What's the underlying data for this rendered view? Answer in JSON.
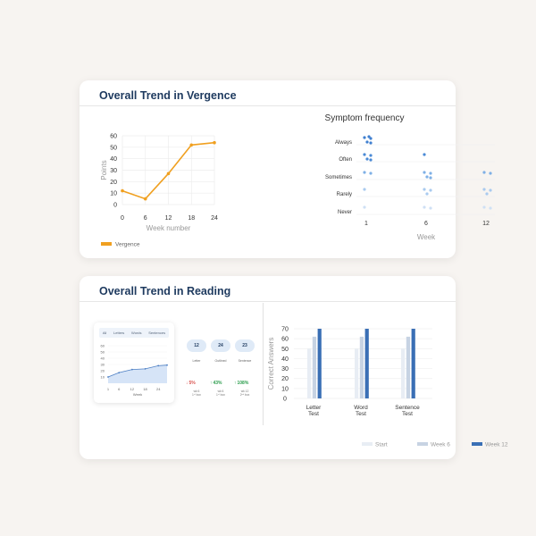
{
  "vergence_card": {
    "title": "Overall Trend in Vergence",
    "line_chart": {
      "ylabel": "Points",
      "xlabel": "Week number",
      "yticks": [
        "0",
        "10",
        "20",
        "30",
        "40",
        "50",
        "60"
      ],
      "xticks": [
        "0",
        "6",
        "12",
        "18",
        "24"
      ],
      "legend": "Vergence",
      "color": "#f0a020"
    },
    "scatter_chart": {
      "title": "Symptom frequency",
      "xlabel": "Week",
      "categories": [
        "Always",
        "Often",
        "Sometimes",
        "Rarely",
        "Never"
      ],
      "xticks": [
        "1",
        "6",
        "12"
      ]
    }
  },
  "reading_card": {
    "title": "Overall Trend in Reading",
    "mini": {
      "tabs": [
        "All",
        "Letters",
        "Words",
        "Sentences"
      ],
      "yticks": [
        "60",
        "50",
        "40",
        "30",
        "20",
        "10"
      ],
      "xticks": [
        "1",
        "6",
        "12",
        "18",
        "24"
      ],
      "xlabel": "Week",
      "values": [
        10,
        17,
        22,
        23,
        28,
        29
      ]
    },
    "stats": [
      {
        "value": "12",
        "label": "Letter",
        "delta": "5%",
        "direction": "down",
        "sub1": "wk 6",
        "sub2": "1ˢᵗ box"
      },
      {
        "value": "24",
        "label": "Outlined",
        "delta": "43%",
        "direction": "up",
        "sub1": "wk 6",
        "sub2": "1ˢᵗ box"
      },
      {
        "value": "23",
        "label": "Sentence",
        "delta": "108%",
        "direction": "up",
        "sub1": "wk 12",
        "sub2": "2ⁿᵈ box"
      }
    ],
    "bar_chart": {
      "ylabel": "Correct Answers",
      "yticks": [
        "0",
        "10",
        "20",
        "30",
        "40",
        "50",
        "60",
        "70"
      ],
      "categories": [
        [
          "Letter",
          "Test"
        ],
        [
          "Word",
          "Test"
        ],
        [
          "Sentence",
          "Test"
        ]
      ],
      "legend": [
        "Start",
        "Week 6",
        "Week 12"
      ],
      "colors": [
        "#e8edf4",
        "#c7d3e3",
        "#3a6fb5"
      ]
    }
  },
  "chart_data": [
    {
      "type": "line",
      "x": [
        0,
        6,
        12,
        18,
        24
      ],
      "series": [
        {
          "name": "Vergence",
          "values": [
            12,
            5,
            27,
            52,
            54
          ]
        }
      ],
      "xlabel": "Week number",
      "ylabel": "Points",
      "ylim": [
        0,
        60
      ],
      "xlim": [
        0,
        24
      ],
      "grid": true,
      "legend": "bottom-left"
    },
    {
      "type": "scatter",
      "title": "Symptom frequency",
      "xlabel": "Week",
      "y_categories": [
        "Never",
        "Rarely",
        "Sometimes",
        "Often",
        "Always"
      ],
      "xticks": [
        1,
        6,
        12
      ],
      "points": [
        {
          "x": 1,
          "y": "Always",
          "n": 5
        },
        {
          "x": 1,
          "y": "Often",
          "n": 4
        },
        {
          "x": 1,
          "y": "Sometimes",
          "n": 2
        },
        {
          "x": 1,
          "y": "Rarely",
          "n": 1
        },
        {
          "x": 1,
          "y": "Never",
          "n": 1
        },
        {
          "x": 6,
          "y": "Often",
          "n": 1
        },
        {
          "x": 6,
          "y": "Sometimes",
          "n": 4
        },
        {
          "x": 6,
          "y": "Rarely",
          "n": 3
        },
        {
          "x": 6,
          "y": "Never",
          "n": 2
        },
        {
          "x": 12,
          "y": "Sometimes",
          "n": 2
        },
        {
          "x": 12,
          "y": "Rarely",
          "n": 3
        },
        {
          "x": 12,
          "y": "Never",
          "n": 2
        }
      ]
    },
    {
      "type": "line",
      "x": [
        1,
        6,
        12,
        18,
        24,
        28
      ],
      "series": [
        {
          "values": [
            10,
            17,
            22,
            23,
            28,
            29
          ]
        }
      ],
      "xlabel": "Week",
      "ylim": [
        0,
        60
      ]
    },
    {
      "type": "bar",
      "categories": [
        "Letter Test",
        "Word Test",
        "Sentence Test"
      ],
      "series": [
        {
          "name": "Start",
          "values": [
            50,
            50,
            50
          ]
        },
        {
          "name": "Week 6",
          "values": [
            62,
            62,
            62
          ]
        },
        {
          "name": "Week 12",
          "values": [
            70,
            70,
            70
          ]
        }
      ],
      "ylabel": "Correct Answers",
      "ylim": [
        0,
        70
      ],
      "legend": "bottom"
    }
  ]
}
